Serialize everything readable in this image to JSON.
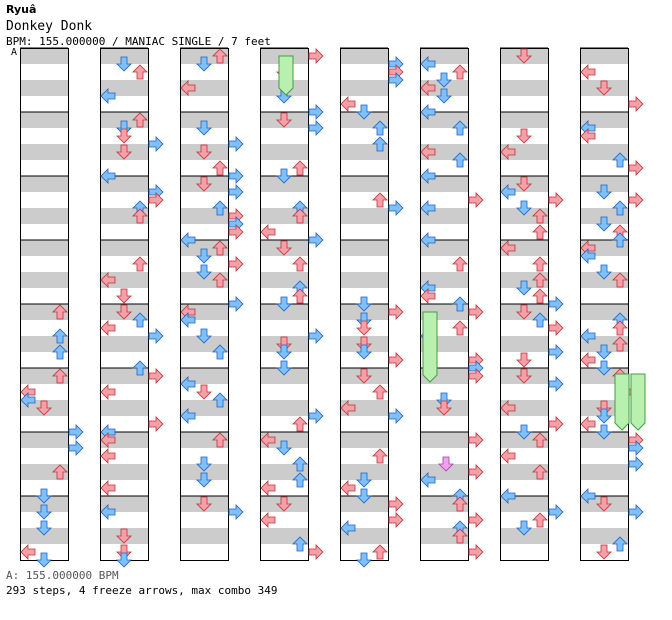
{
  "header": {
    "artist": "Ryuâ",
    "title": "Donkey Donk",
    "info": "BPM: 155.000000 / MANIAC SINGLE / 7 feet",
    "bpm_marker": "A"
  },
  "footer": {
    "bpm_legend": "A: 155.000000 BPM",
    "stats": "293 steps, 4 freeze arrows, max combo 349"
  },
  "colors": {
    "red_arrow": "#f4a0a8",
    "red_outline": "#c0303a",
    "blue_arrow": "#80c0f8",
    "blue_outline": "#2060c0",
    "freeze": "#b8f0b0",
    "freeze_outline": "#40a040",
    "shock": "#f0a0f0",
    "stripe": "#cccccc"
  },
  "chart_data": {
    "type": "step-chart",
    "columns": 8,
    "measures_per_column": 8,
    "lanes": [
      "left",
      "down",
      "up",
      "right"
    ],
    "freeze_arrows": 4,
    "steps": 293,
    "max_combo": 349
  }
}
